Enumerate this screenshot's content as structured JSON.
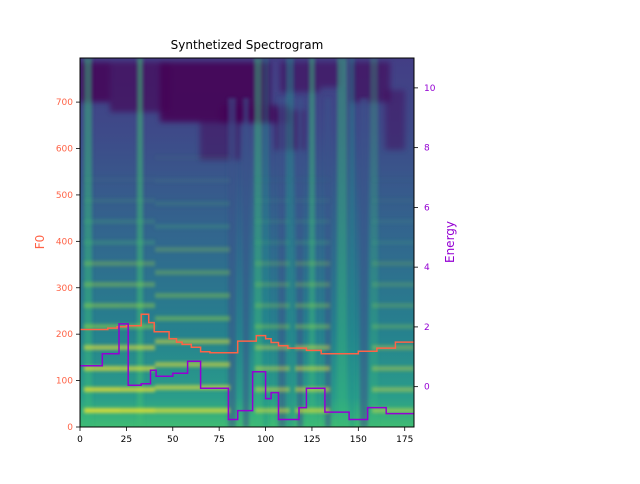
{
  "chart_data": {
    "type": "line",
    "title": "Synthetized Spectrogram",
    "background": "spectrogram (viridis colormap)",
    "x_axis": {
      "range": [
        0,
        180
      ],
      "ticks": [
        0,
        25,
        50,
        75,
        100,
        125,
        150,
        175
      ]
    },
    "y_left": {
      "label": "F0",
      "color": "#ff6347",
      "range": [
        0,
        795
      ],
      "ticks": [
        0,
        100,
        200,
        300,
        400,
        500,
        600,
        700
      ]
    },
    "y_right": {
      "label": "Energy",
      "color": "#9400d3",
      "range": [
        -1.35,
        11.0
      ],
      "ticks": [
        0,
        2,
        4,
        6,
        8,
        10
      ]
    },
    "series": [
      {
        "name": "F0",
        "axis": "left",
        "color": "#ff6347",
        "step": true,
        "x": [
          0,
          5,
          10,
          15,
          20,
          25,
          33,
          37,
          40,
          48,
          52,
          55,
          60,
          65,
          70,
          77,
          85,
          90,
          95,
          100,
          103,
          107,
          112,
          117,
          122,
          130,
          140,
          150,
          155,
          160,
          170,
          180
        ],
        "y": [
          210,
          210,
          210,
          213,
          216,
          218,
          243,
          225,
          205,
          190,
          183,
          178,
          172,
          162,
          160,
          160,
          185,
          185,
          197,
          190,
          182,
          175,
          170,
          170,
          165,
          158,
          158,
          163,
          163,
          170,
          183,
          183
        ]
      },
      {
        "name": "Energy",
        "axis": "right",
        "color": "#9400d3",
        "step": true,
        "x": [
          0,
          12,
          21,
          26,
          33,
          38,
          41,
          48,
          50,
          52,
          58,
          65,
          70,
          80,
          85,
          93,
          100,
          103,
          107,
          111,
          118,
          122,
          132,
          145,
          155,
          165,
          170,
          180
        ],
        "y": [
          0.7,
          1.1,
          2.1,
          0.05,
          0.1,
          0.55,
          0.35,
          0.35,
          0.45,
          0.45,
          0.85,
          -0.05,
          -0.05,
          -1.1,
          -0.8,
          0.5,
          -0.4,
          -0.2,
          -1.1,
          -1.1,
          -0.7,
          -0.05,
          -0.85,
          -1.1,
          -0.7,
          -0.9,
          -0.9,
          -0.9
        ]
      }
    ]
  }
}
